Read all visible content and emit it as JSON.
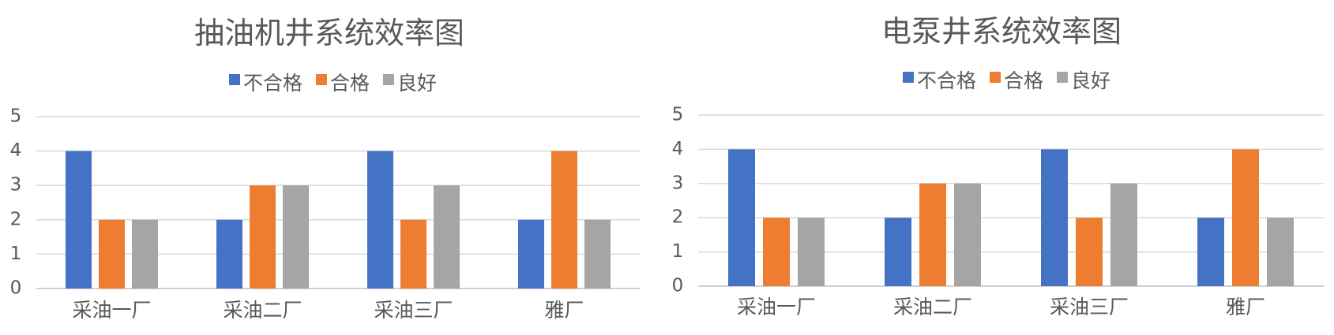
{
  "chart_data": [
    {
      "type": "bar",
      "title": "抽油机井系统效率图",
      "categories": [
        "采油一厂",
        "采油二厂",
        "采油三厂",
        "雅厂"
      ],
      "series": [
        {
          "name": "不合格",
          "color": "#4472C4",
          "values": [
            4,
            2,
            4,
            2
          ]
        },
        {
          "name": "合格",
          "color": "#ED7D31",
          "values": [
            2,
            3,
            2,
            4
          ]
        },
        {
          "name": "良好",
          "color": "#A5A5A5",
          "values": [
            2,
            3,
            3,
            2
          ]
        }
      ],
      "ylim": [
        0,
        5
      ],
      "yticks": [
        "0",
        "1",
        "2",
        "3",
        "4",
        "5"
      ],
      "grid": true,
      "legend": "top"
    },
    {
      "type": "bar",
      "title": "电泵井系统效率图",
      "categories": [
        "采油一厂",
        "采油二厂",
        "采油三厂",
        "雅厂"
      ],
      "series": [
        {
          "name": "不合格",
          "color": "#4472C4",
          "values": [
            4,
            2,
            4,
            2
          ]
        },
        {
          "name": "合格",
          "color": "#ED7D31",
          "values": [
            2,
            3,
            2,
            4
          ]
        },
        {
          "name": "良好",
          "color": "#A5A5A5",
          "values": [
            2,
            3,
            3,
            2
          ]
        }
      ],
      "ylim": [
        0,
        5
      ],
      "yticks": [
        "0",
        "1",
        "2",
        "3",
        "4",
        "5"
      ],
      "grid": true,
      "legend": "top"
    }
  ]
}
